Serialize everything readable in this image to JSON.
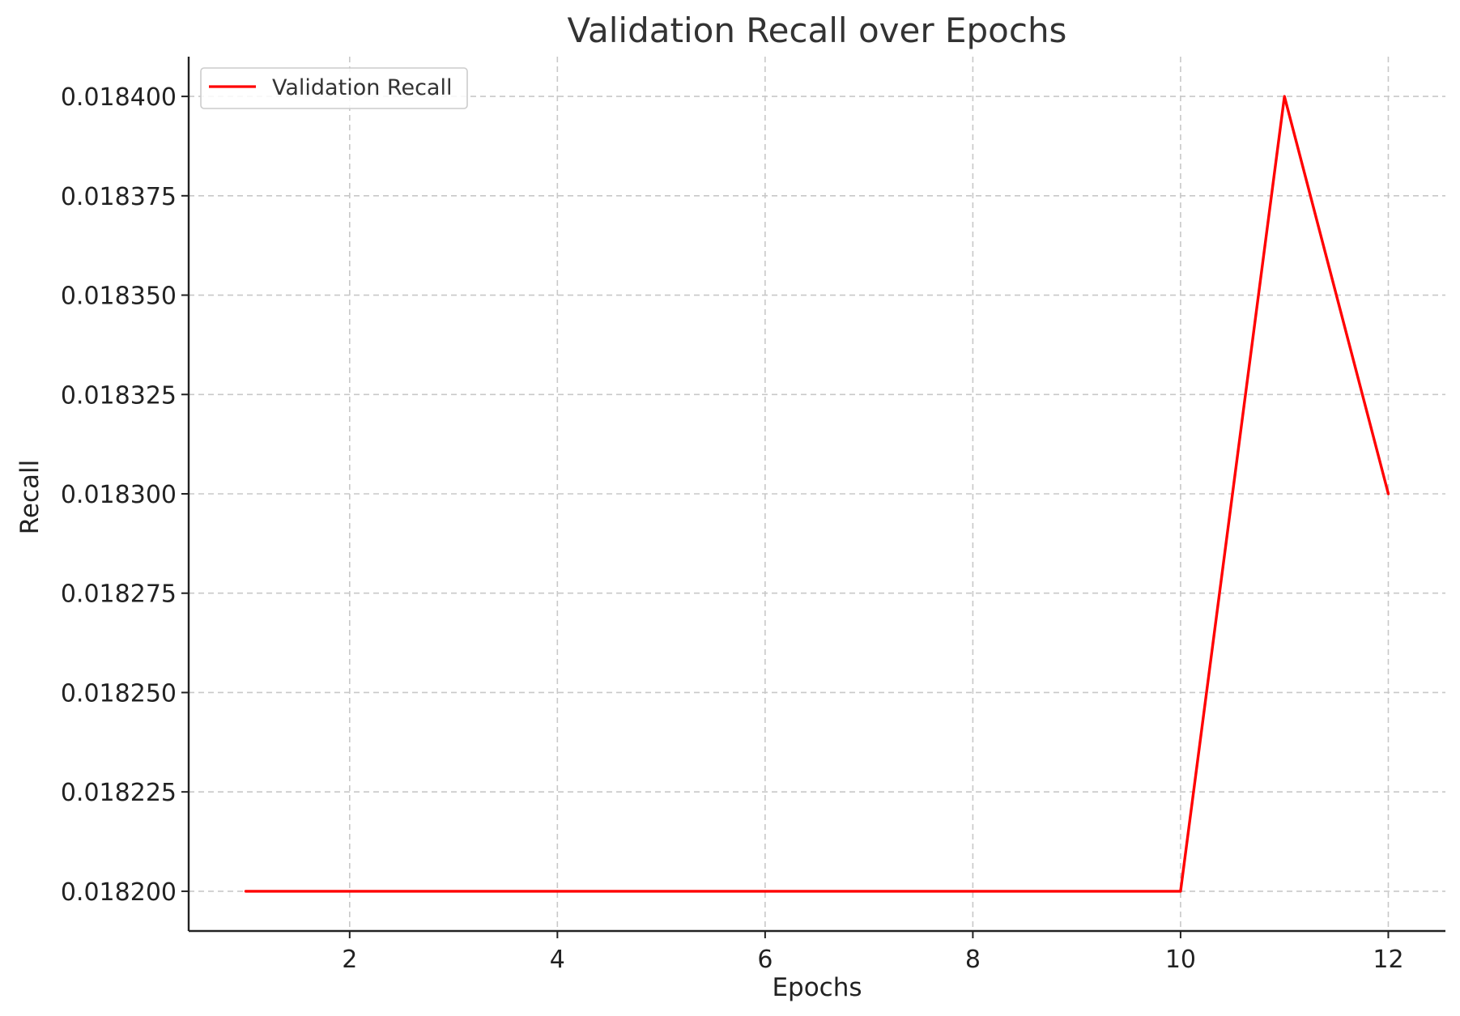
{
  "chart_data": {
    "type": "line",
    "title": "Validation Recall over Epochs",
    "xlabel": "Epochs",
    "ylabel": "Recall",
    "x": [
      1,
      2,
      3,
      4,
      5,
      6,
      7,
      8,
      9,
      10,
      11,
      12
    ],
    "series": [
      {
        "name": "Validation Recall",
        "color": "#ff0000",
        "values": [
          0.0182,
          0.0182,
          0.0182,
          0.0182,
          0.0182,
          0.0182,
          0.0182,
          0.0182,
          0.0182,
          0.0182,
          0.0184,
          0.0183
        ]
      }
    ],
    "xlim": [
      0.45,
      12.55
    ],
    "ylim": [
      0.01819,
      0.01841
    ],
    "xticks": [
      2,
      4,
      6,
      8,
      10,
      12
    ],
    "xtick_labels": [
      "2",
      "4",
      "6",
      "8",
      "10",
      "12"
    ],
    "yticks": [
      0.0182,
      0.018225,
      0.01825,
      0.018275,
      0.0183,
      0.018325,
      0.01835,
      0.018375,
      0.0184
    ],
    "ytick_labels": [
      "0.018200",
      "0.018225",
      "0.018250",
      "0.018275",
      "0.018300",
      "0.018325",
      "0.018350",
      "0.018375",
      "0.018400"
    ],
    "grid": true,
    "legend_position": "top-left"
  }
}
